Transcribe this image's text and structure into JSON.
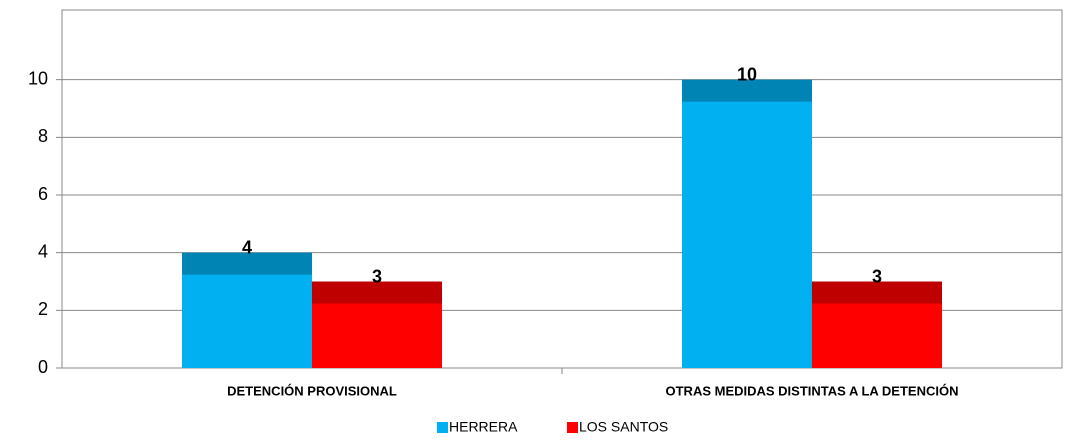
{
  "chart_data": {
    "type": "bar",
    "categories": [
      "DETENCIÓN PROVISIONAL",
      "OTRAS MEDIDAS DISTINTAS A LA DETENCIÓN"
    ],
    "series": [
      {
        "name": "HERRERA",
        "color": "#00b0f0",
        "values": [
          4,
          10
        ]
      },
      {
        "name": "LOS SANTOS",
        "color": "#ff0000",
        "values": [
          3,
          3
        ]
      }
    ],
    "ylim": [
      0,
      12
    ],
    "yticks": [
      0,
      2,
      4,
      6,
      8,
      10
    ],
    "grid": true,
    "legend": "bottom"
  }
}
